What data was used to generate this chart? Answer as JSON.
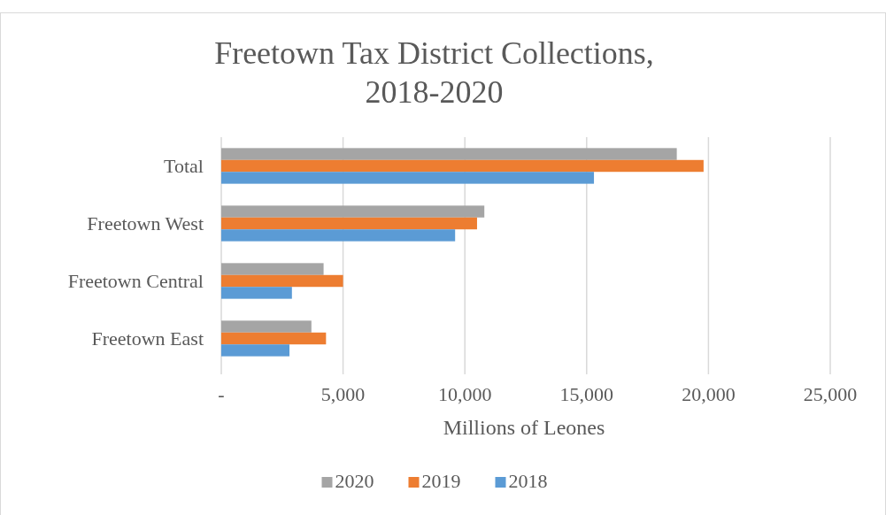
{
  "chart_data": {
    "type": "bar",
    "orientation": "horizontal",
    "title": "Freetown Tax District Collections,\n2018-2020",
    "xlabel": "Millions of Leones",
    "categories": [
      "Total",
      "Freetown West",
      "Freetown Central",
      "Freetown East"
    ],
    "series": [
      {
        "name": "2020",
        "color": "#a5a5a5",
        "values": [
          18700,
          10800,
          4200,
          3700
        ]
      },
      {
        "name": "2019",
        "color": "#ed7d31",
        "values": [
          19800,
          10500,
          5000,
          4300
        ]
      },
      {
        "name": "2018",
        "color": "#5b9bd5",
        "values": [
          15300,
          9600,
          2900,
          2800
        ]
      }
    ],
    "xlim": [
      0,
      25000
    ],
    "xticks": [
      {
        "value": 0,
        "label": "-"
      },
      {
        "value": 5000,
        "label": "5,000"
      },
      {
        "value": 10000,
        "label": "10,000"
      },
      {
        "value": 15000,
        "label": "15,000"
      },
      {
        "value": 20000,
        "label": "20,000"
      },
      {
        "value": 25000,
        "label": "25,000"
      }
    ],
    "grid": "x",
    "legend": "bottom"
  }
}
